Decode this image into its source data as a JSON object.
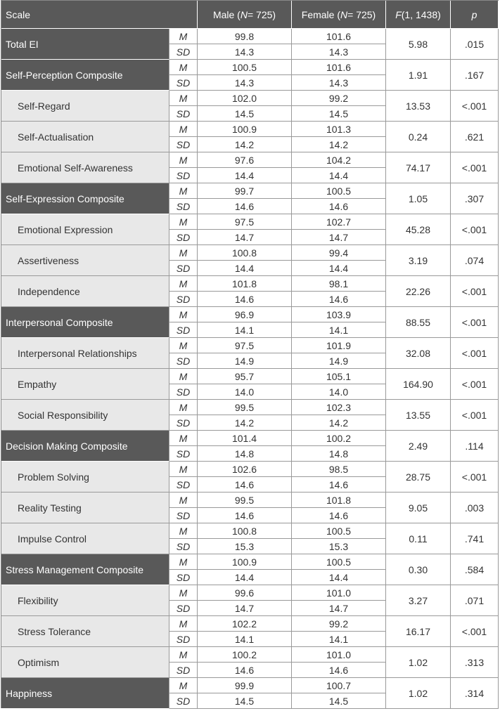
{
  "header": {
    "scale": "Scale",
    "male": [
      "Male (",
      "N",
      " = 725)"
    ],
    "female": [
      "Female (",
      "N",
      " = 725)"
    ],
    "f": [
      "F",
      " (1, 1438)"
    ],
    "p": "p"
  },
  "stat_labels": [
    "M",
    "SD"
  ],
  "rows": [
    {
      "scale": "Total EI",
      "composite": true,
      "male": [
        "99.8",
        "14.3"
      ],
      "female": [
        "101.6",
        "14.3"
      ],
      "f": "5.98",
      "p": ".015"
    },
    {
      "scale": "Self-Perception Composite",
      "composite": true,
      "male": [
        "100.5",
        "14.3"
      ],
      "female": [
        "101.6",
        "14.3"
      ],
      "f": "1.91",
      "p": ".167"
    },
    {
      "scale": "Self-Regard",
      "composite": false,
      "male": [
        "102.0",
        "14.5"
      ],
      "female": [
        "99.2",
        "14.5"
      ],
      "f": "13.53",
      "p": "<.001"
    },
    {
      "scale": "Self-Actualisation",
      "composite": false,
      "male": [
        "100.9",
        "14.2"
      ],
      "female": [
        "101.3",
        "14.2"
      ],
      "f": "0.24",
      "p": ".621"
    },
    {
      "scale": "Emotional Self-Awareness",
      "composite": false,
      "male": [
        "97.6",
        "14.4"
      ],
      "female": [
        "104.2",
        "14.4"
      ],
      "f": "74.17",
      "p": "<.001"
    },
    {
      "scale": "Self-Expression Composite",
      "composite": true,
      "male": [
        "99.7",
        "14.6"
      ],
      "female": [
        "100.5",
        "14.6"
      ],
      "f": "1.05",
      "p": ".307"
    },
    {
      "scale": "Emotional Expression",
      "composite": false,
      "male": [
        "97.5",
        "14.7"
      ],
      "female": [
        "102.7",
        "14.7"
      ],
      "f": "45.28",
      "p": "<.001"
    },
    {
      "scale": "Assertiveness",
      "composite": false,
      "male": [
        "100.8",
        "14.4"
      ],
      "female": [
        "99.4",
        "14.4"
      ],
      "f": "3.19",
      "p": ".074"
    },
    {
      "scale": "Independence",
      "composite": false,
      "male": [
        "101.8",
        "14.6"
      ],
      "female": [
        "98.1",
        "14.6"
      ],
      "f": "22.26",
      "p": "<.001"
    },
    {
      "scale": "Interpersonal Composite",
      "composite": true,
      "male": [
        "96.9",
        "14.1"
      ],
      "female": [
        "103.9",
        "14.1"
      ],
      "f": "88.55",
      "p": "<.001"
    },
    {
      "scale": "Interpersonal Relationships",
      "composite": false,
      "male": [
        "97.5",
        "14.9"
      ],
      "female": [
        "101.9",
        "14.9"
      ],
      "f": "32.08",
      "p": "<.001"
    },
    {
      "scale": "Empathy",
      "composite": false,
      "male": [
        "95.7",
        "14.0"
      ],
      "female": [
        "105.1",
        "14.0"
      ],
      "f": "164.90",
      "p": "<.001"
    },
    {
      "scale": "Social Responsibility",
      "composite": false,
      "male": [
        "99.5",
        "14.2"
      ],
      "female": [
        "102.3",
        "14.2"
      ],
      "f": "13.55",
      "p": "<.001"
    },
    {
      "scale": "Decision Making Composite",
      "composite": true,
      "male": [
        "101.4",
        "14.8"
      ],
      "female": [
        "100.2",
        "14.8"
      ],
      "f": "2.49",
      "p": ".114"
    },
    {
      "scale": "Problem Solving",
      "composite": false,
      "male": [
        "102.6",
        "14.6"
      ],
      "female": [
        "98.5",
        "14.6"
      ],
      "f": "28.75",
      "p": "<.001"
    },
    {
      "scale": "Reality Testing",
      "composite": false,
      "male": [
        "99.5",
        "14.6"
      ],
      "female": [
        "101.8",
        "14.6"
      ],
      "f": "9.05",
      "p": ".003"
    },
    {
      "scale": "Impulse Control",
      "composite": false,
      "male": [
        "100.8",
        "15.3"
      ],
      "female": [
        "100.5",
        "15.3"
      ],
      "f": "0.11",
      "p": ".741"
    },
    {
      "scale": "Stress Management Composite",
      "composite": true,
      "male": [
        "100.9",
        "14.4"
      ],
      "female": [
        "100.5",
        "14.4"
      ],
      "f": "0.30",
      "p": ".584"
    },
    {
      "scale": "Flexibility",
      "composite": false,
      "male": [
        "99.6",
        "14.7"
      ],
      "female": [
        "101.0",
        "14.7"
      ],
      "f": "3.27",
      "p": ".071"
    },
    {
      "scale": "Stress Tolerance",
      "composite": false,
      "male": [
        "102.2",
        "14.1"
      ],
      "female": [
        "99.2",
        "14.1"
      ],
      "f": "16.17",
      "p": "<.001"
    },
    {
      "scale": "Optimism",
      "composite": false,
      "male": [
        "100.2",
        "14.6"
      ],
      "female": [
        "101.0",
        "14.6"
      ],
      "f": "1.02",
      "p": ".313"
    },
    {
      "scale": "Happiness",
      "composite": true,
      "male": [
        "99.9",
        "14.5"
      ],
      "female": [
        "100.7",
        "14.5"
      ],
      "f": "1.02",
      "p": ".314"
    }
  ]
}
